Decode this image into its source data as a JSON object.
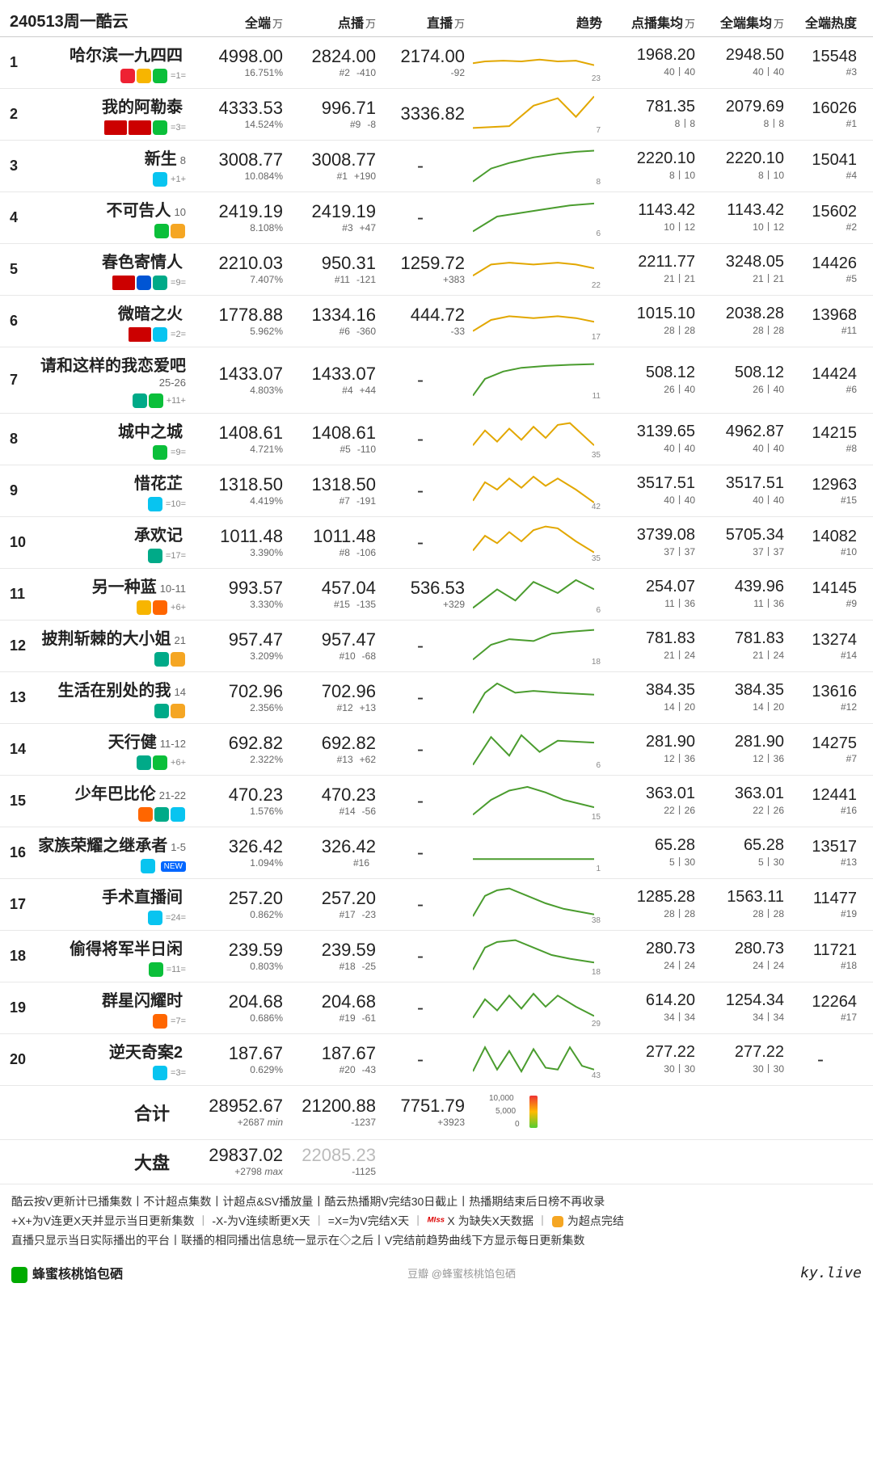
{
  "header": {
    "date": "240513周一酷云",
    "cols": {
      "all": "全端",
      "vod": "点播",
      "live": "直播",
      "trend": "趋势",
      "vodavg": "点播集均",
      "allavg": "全端集均",
      "heat": "全端热度",
      "unit": "万"
    }
  },
  "colors": {
    "line_hi": "#e2a700",
    "line_lo": "#4a9c2e",
    "grid": "#cccccc"
  },
  "rows": [
    {
      "rank": 1,
      "title": "哈尔滨一九四四",
      "ep": "",
      "plat": [
        "dragon",
        "hunan",
        "iqiyi"
      ],
      "ptxt": "=1=",
      "all": "4998.00",
      "all_sub": "16.751%",
      "vod": "2824.00",
      "vod_rk": "#2",
      "vod_d": "-410",
      "live": "2174.00",
      "live_d": "-92",
      "tn": "23",
      "trend": [
        [
          0,
          0.55
        ],
        [
          0.1,
          0.5
        ],
        [
          0.25,
          0.48
        ],
        [
          0.4,
          0.5
        ],
        [
          0.55,
          0.45
        ],
        [
          0.7,
          0.5
        ],
        [
          0.85,
          0.48
        ],
        [
          1,
          0.6
        ]
      ],
      "vodavg": "1968.20",
      "vodavg_s": "40丨40",
      "allavg": "2948.50",
      "allavg_s": "40丨40",
      "heat": "15548",
      "heat_r": "#3"
    },
    {
      "rank": 2,
      "title": "我的阿勒泰",
      "ep": "",
      "plat": [
        "cctv1",
        "cctv8",
        "iqiyi"
      ],
      "ptxt": "=3=",
      "all": "4333.53",
      "all_sub": "14.524%",
      "vod": "996.71",
      "vod_rk": "#9",
      "vod_d": "-8",
      "live": "3336.82",
      "live_d": "",
      "tn": "7",
      "trend": [
        [
          0,
          0.9
        ],
        [
          0.3,
          0.85
        ],
        [
          0.5,
          0.3
        ],
        [
          0.7,
          0.1
        ],
        [
          0.85,
          0.6
        ],
        [
          1,
          0.05
        ]
      ],
      "vodavg": "781.35",
      "vodavg_s": "8丨8",
      "allavg": "2079.69",
      "allavg_s": "8丨8",
      "heat": "16026",
      "heat_r": "#1"
    },
    {
      "rank": 3,
      "title": "新生",
      "ep": "8",
      "plat": [
        "youku"
      ],
      "ptxt": "+1+",
      "all": "3008.77",
      "all_sub": "10.084%",
      "vod": "3008.77",
      "vod_rk": "#1",
      "vod_d": "+190",
      "live": "-",
      "live_d": "",
      "tn": "8",
      "trend": [
        [
          0,
          0.95
        ],
        [
          0.15,
          0.6
        ],
        [
          0.3,
          0.45
        ],
        [
          0.5,
          0.3
        ],
        [
          0.7,
          0.2
        ],
        [
          0.85,
          0.15
        ],
        [
          1,
          0.12
        ]
      ],
      "vodavg": "2220.10",
      "vodavg_s": "8丨10",
      "allavg": "2220.10",
      "allavg_s": "8丨10",
      "heat": "15041",
      "heat_r": "#4"
    },
    {
      "rank": 4,
      "title": "不可告人",
      "ep": "10",
      "plat": [
        "iqiyi",
        "yy"
      ],
      "ptxt": "",
      "all": "2419.19",
      "all_sub": "8.108%",
      "vod": "2419.19",
      "vod_rk": "#3",
      "vod_d": "+47",
      "live": "-",
      "live_d": "",
      "tn": "6",
      "trend": [
        [
          0,
          0.9
        ],
        [
          0.2,
          0.5
        ],
        [
          0.4,
          0.4
        ],
        [
          0.6,
          0.3
        ],
        [
          0.8,
          0.2
        ],
        [
          1,
          0.15
        ]
      ],
      "vodavg": "1143.42",
      "vodavg_s": "10丨12",
      "allavg": "1143.42",
      "allavg_s": "10丨12",
      "heat": "15602",
      "heat_r": "#2"
    },
    {
      "rank": 5,
      "title": "春色寄情人",
      "ep": "",
      "plat": [
        "cctv8",
        "zj",
        "tx"
      ],
      "ptxt": "=9=",
      "all": "2210.03",
      "all_sub": "7.407%",
      "vod": "950.31",
      "vod_rk": "#11",
      "vod_d": "-121",
      "live": "1259.72",
      "live_d": "+383",
      "tn": "22",
      "trend": [
        [
          0,
          0.7
        ],
        [
          0.15,
          0.4
        ],
        [
          0.3,
          0.35
        ],
        [
          0.5,
          0.4
        ],
        [
          0.7,
          0.35
        ],
        [
          0.85,
          0.4
        ],
        [
          1,
          0.5
        ]
      ],
      "vodavg": "2211.77",
      "vodavg_s": "21丨21",
      "allavg": "3248.05",
      "allavg_s": "21丨21",
      "heat": "14426",
      "heat_r": "#5"
    },
    {
      "rank": 6,
      "title": "微暗之火",
      "ep": "",
      "plat": [
        "cctv8",
        "youku"
      ],
      "ptxt": "=2=",
      "all": "1778.88",
      "all_sub": "5.962%",
      "vod": "1334.16",
      "vod_rk": "#6",
      "vod_d": "-360",
      "live": "444.72",
      "live_d": "-33",
      "tn": "17",
      "trend": [
        [
          0,
          0.8
        ],
        [
          0.15,
          0.5
        ],
        [
          0.3,
          0.4
        ],
        [
          0.5,
          0.45
        ],
        [
          0.7,
          0.4
        ],
        [
          0.85,
          0.45
        ],
        [
          1,
          0.55
        ]
      ],
      "vodavg": "1015.10",
      "vodavg_s": "28丨28",
      "allavg": "2038.28",
      "allavg_s": "28丨28",
      "heat": "13968",
      "heat_r": "#11"
    },
    {
      "rank": 7,
      "title": "请和这样的我恋爱吧",
      "ep": "25-26",
      "plat": [
        "tx",
        "iqiyi"
      ],
      "ptxt": "+11+",
      "all": "1433.07",
      "all_sub": "4.803%",
      "vod": "1433.07",
      "vod_rk": "#4",
      "vod_d": "+44",
      "live": "-",
      "live_d": "",
      "tn": "11",
      "trend": [
        [
          0,
          0.95
        ],
        [
          0.1,
          0.5
        ],
        [
          0.25,
          0.3
        ],
        [
          0.4,
          0.2
        ],
        [
          0.6,
          0.15
        ],
        [
          0.8,
          0.12
        ],
        [
          1,
          0.1
        ]
      ],
      "vodavg": "508.12",
      "vodavg_s": "26丨40",
      "allavg": "508.12",
      "allavg_s": "26丨40",
      "heat": "14424",
      "heat_r": "#6"
    },
    {
      "rank": 8,
      "title": "城中之城",
      "ep": "",
      "plat": [
        "iqiyi"
      ],
      "ptxt": "=9=",
      "all": "1408.61",
      "all_sub": "4.721%",
      "vod": "1408.61",
      "vod_rk": "#5",
      "vod_d": "-110",
      "live": "-",
      "live_d": "",
      "tn": "35",
      "trend": [
        [
          0,
          0.7
        ],
        [
          0.1,
          0.3
        ],
        [
          0.2,
          0.6
        ],
        [
          0.3,
          0.25
        ],
        [
          0.4,
          0.55
        ],
        [
          0.5,
          0.2
        ],
        [
          0.6,
          0.5
        ],
        [
          0.7,
          0.15
        ],
        [
          0.8,
          0.1
        ],
        [
          0.9,
          0.4
        ],
        [
          1,
          0.7
        ]
      ],
      "vodavg": "3139.65",
      "vodavg_s": "40丨40",
      "allavg": "4962.87",
      "allavg_s": "40丨40",
      "heat": "14215",
      "heat_r": "#8"
    },
    {
      "rank": 9,
      "title": "惜花芷",
      "ep": "",
      "plat": [
        "youku"
      ],
      "ptxt": "=10=",
      "all": "1318.50",
      "all_sub": "4.419%",
      "vod": "1318.50",
      "vod_rk": "#7",
      "vod_d": "-191",
      "live": "-",
      "live_d": "",
      "tn": "42",
      "trend": [
        [
          0,
          0.8
        ],
        [
          0.1,
          0.3
        ],
        [
          0.2,
          0.5
        ],
        [
          0.3,
          0.2
        ],
        [
          0.4,
          0.45
        ],
        [
          0.5,
          0.15
        ],
        [
          0.6,
          0.4
        ],
        [
          0.7,
          0.2
        ],
        [
          0.85,
          0.5
        ],
        [
          1,
          0.85
        ]
      ],
      "vodavg": "3517.51",
      "vodavg_s": "40丨40",
      "allavg": "3517.51",
      "allavg_s": "40丨40",
      "heat": "12963",
      "heat_r": "#15"
    },
    {
      "rank": 10,
      "title": "承欢记",
      "ep": "",
      "plat": [
        "tx"
      ],
      "ptxt": "=17=",
      "all": "1011.48",
      "all_sub": "3.390%",
      "vod": "1011.48",
      "vod_rk": "#8",
      "vod_d": "-106",
      "live": "-",
      "live_d": "",
      "tn": "35",
      "trend": [
        [
          0,
          0.75
        ],
        [
          0.1,
          0.35
        ],
        [
          0.2,
          0.55
        ],
        [
          0.3,
          0.25
        ],
        [
          0.4,
          0.5
        ],
        [
          0.5,
          0.2
        ],
        [
          0.6,
          0.1
        ],
        [
          0.7,
          0.15
        ],
        [
          0.85,
          0.5
        ],
        [
          1,
          0.8
        ]
      ],
      "vodavg": "3739.08",
      "vodavg_s": "37丨37",
      "allavg": "5705.34",
      "allavg_s": "37丨37",
      "heat": "14082",
      "heat_r": "#10"
    },
    {
      "rank": 11,
      "title": "另一种蓝",
      "ep": "10-11",
      "plat": [
        "hunan",
        "mg"
      ],
      "ptxt": "+6+",
      "all": "993.57",
      "all_sub": "3.330%",
      "vod": "457.04",
      "vod_rk": "#15",
      "vod_d": "-135",
      "live": "536.53",
      "live_d": "+329",
      "tn": "6",
      "trend": [
        [
          0,
          0.9
        ],
        [
          0.2,
          0.4
        ],
        [
          0.35,
          0.7
        ],
        [
          0.5,
          0.2
        ],
        [
          0.7,
          0.5
        ],
        [
          0.85,
          0.15
        ],
        [
          1,
          0.4
        ]
      ],
      "vodavg": "254.07",
      "vodavg_s": "11丨36",
      "allavg": "439.96",
      "allavg_s": "11丨36",
      "heat": "14145",
      "heat_r": "#9"
    },
    {
      "rank": 12,
      "title": "披荆斩棘的大小姐",
      "ep": "21",
      "plat": [
        "tx",
        "yy"
      ],
      "ptxt": "",
      "all": "957.47",
      "all_sub": "3.209%",
      "vod": "957.47",
      "vod_rk": "#10",
      "vod_d": "-68",
      "live": "-",
      "live_d": "",
      "tn": "18",
      "trend": [
        [
          0,
          0.9
        ],
        [
          0.15,
          0.5
        ],
        [
          0.3,
          0.35
        ],
        [
          0.5,
          0.4
        ],
        [
          0.65,
          0.2
        ],
        [
          0.8,
          0.15
        ],
        [
          1,
          0.1
        ]
      ],
      "vodavg": "781.83",
      "vodavg_s": "21丨24",
      "allavg": "781.83",
      "allavg_s": "21丨24",
      "heat": "13274",
      "heat_r": "#14"
    },
    {
      "rank": 13,
      "title": "生活在别处的我",
      "ep": "14",
      "plat": [
        "tx",
        "yy"
      ],
      "ptxt": "",
      "all": "702.96",
      "all_sub": "2.356%",
      "vod": "702.96",
      "vod_rk": "#12",
      "vod_d": "+13",
      "live": "-",
      "live_d": "",
      "tn": "",
      "trend": [
        [
          0,
          0.95
        ],
        [
          0.1,
          0.4
        ],
        [
          0.2,
          0.15
        ],
        [
          0.35,
          0.4
        ],
        [
          0.5,
          0.35
        ],
        [
          0.7,
          0.4
        ],
        [
          1,
          0.45
        ]
      ],
      "vodavg": "384.35",
      "vodavg_s": "14丨20",
      "allavg": "384.35",
      "allavg_s": "14丨20",
      "heat": "13616",
      "heat_r": "#12"
    },
    {
      "rank": 14,
      "title": "天行健",
      "ep": "11-12",
      "plat": [
        "tx",
        "iqiyi"
      ],
      "ptxt": "+6+",
      "all": "692.82",
      "all_sub": "2.322%",
      "vod": "692.82",
      "vod_rk": "#13",
      "vod_d": "+62",
      "live": "-",
      "live_d": "",
      "tn": "6",
      "trend": [
        [
          0,
          0.95
        ],
        [
          0.15,
          0.2
        ],
        [
          0.3,
          0.7
        ],
        [
          0.4,
          0.15
        ],
        [
          0.55,
          0.6
        ],
        [
          0.7,
          0.3
        ],
        [
          1,
          0.35
        ]
      ],
      "vodavg": "281.90",
      "vodavg_s": "12丨36",
      "allavg": "281.90",
      "allavg_s": "12丨36",
      "heat": "14275",
      "heat_r": "#7"
    },
    {
      "rank": 15,
      "title": "少年巴比伦",
      "ep": "21-22",
      "plat": [
        "mg",
        "tx",
        "youku"
      ],
      "ptxt": "",
      "all": "470.23",
      "all_sub": "1.576%",
      "vod": "470.23",
      "vod_rk": "#14",
      "vod_d": "-56",
      "live": "-",
      "live_d": "",
      "tn": "15",
      "trend": [
        [
          0,
          0.9
        ],
        [
          0.15,
          0.5
        ],
        [
          0.3,
          0.25
        ],
        [
          0.45,
          0.15
        ],
        [
          0.6,
          0.3
        ],
        [
          0.75,
          0.5
        ],
        [
          1,
          0.7
        ]
      ],
      "vodavg": "363.01",
      "vodavg_s": "22丨26",
      "allavg": "363.01",
      "allavg_s": "22丨26",
      "heat": "12441",
      "heat_r": "#16"
    },
    {
      "rank": 16,
      "title": "家族荣耀之继承者",
      "ep": "1-5",
      "plat": [
        "youku"
      ],
      "ptxt": "NEW",
      "new": true,
      "all": "326.42",
      "all_sub": "1.094%",
      "vod": "326.42",
      "vod_rk": "#16",
      "vod_d": "",
      "live": "-",
      "live_d": "",
      "tn": "1",
      "trend": [
        [
          0,
          0.7
        ],
        [
          1,
          0.7
        ]
      ],
      "vodavg": "65.28",
      "vodavg_s": "5丨30",
      "allavg": "65.28",
      "allavg_s": "5丨30",
      "heat": "13517",
      "heat_r": "#13"
    },
    {
      "rank": 17,
      "title": "手术直播间",
      "ep": "",
      "plat": [
        "youku"
      ],
      "ptxt": "=24=",
      "all": "257.20",
      "all_sub": "0.862%",
      "vod": "257.20",
      "vod_rk": "#17",
      "vod_d": "-23",
      "live": "-",
      "live_d": "",
      "tn": "38",
      "trend": [
        [
          0,
          0.85
        ],
        [
          0.1,
          0.3
        ],
        [
          0.2,
          0.15
        ],
        [
          0.3,
          0.1
        ],
        [
          0.45,
          0.3
        ],
        [
          0.6,
          0.5
        ],
        [
          0.75,
          0.65
        ],
        [
          1,
          0.8
        ]
      ],
      "vodavg": "1285.28",
      "vodavg_s": "28丨28",
      "allavg": "1563.11",
      "allavg_s": "28丨28",
      "heat": "11477",
      "heat_r": "#19"
    },
    {
      "rank": 18,
      "title": "偷得将军半日闲",
      "ep": "",
      "plat": [
        "iqiyi"
      ],
      "ptxt": "=11=",
      "all": "239.59",
      "all_sub": "0.803%",
      "vod": "239.59",
      "vod_rk": "#18",
      "vod_d": "-25",
      "live": "-",
      "live_d": "",
      "tn": "18",
      "trend": [
        [
          0,
          0.9
        ],
        [
          0.1,
          0.3
        ],
        [
          0.2,
          0.15
        ],
        [
          0.35,
          0.1
        ],
        [
          0.5,
          0.3
        ],
        [
          0.65,
          0.5
        ],
        [
          0.8,
          0.6
        ],
        [
          1,
          0.7
        ]
      ],
      "vodavg": "280.73",
      "vodavg_s": "24丨24",
      "allavg": "280.73",
      "allavg_s": "24丨24",
      "heat": "11721",
      "heat_r": "#18"
    },
    {
      "rank": 19,
      "title": "群星闪耀时",
      "ep": "",
      "plat": [
        "mg"
      ],
      "ptxt": "=7=",
      "all": "204.68",
      "all_sub": "0.686%",
      "vod": "204.68",
      "vod_rk": "#19",
      "vod_d": "-61",
      "live": "-",
      "live_d": "",
      "tn": "29",
      "trend": [
        [
          0,
          0.8
        ],
        [
          0.1,
          0.3
        ],
        [
          0.2,
          0.6
        ],
        [
          0.3,
          0.2
        ],
        [
          0.4,
          0.55
        ],
        [
          0.5,
          0.15
        ],
        [
          0.6,
          0.5
        ],
        [
          0.7,
          0.2
        ],
        [
          0.85,
          0.5
        ],
        [
          1,
          0.75
        ]
      ],
      "vodavg": "614.20",
      "vodavg_s": "34丨34",
      "allavg": "1254.34",
      "allavg_s": "34丨34",
      "heat": "12264",
      "heat_r": "#17"
    },
    {
      "rank": 20,
      "title": "逆天奇案2",
      "ep": "",
      "plat": [
        "youku"
      ],
      "ptxt": "=3=",
      "all": "187.67",
      "all_sub": "0.629%",
      "vod": "187.67",
      "vod_rk": "#20",
      "vod_d": "-43",
      "live": "-",
      "live_d": "",
      "tn": "43",
      "trend": [
        [
          0,
          0.85
        ],
        [
          0.1,
          0.2
        ],
        [
          0.2,
          0.8
        ],
        [
          0.3,
          0.3
        ],
        [
          0.4,
          0.85
        ],
        [
          0.5,
          0.25
        ],
        [
          0.6,
          0.75
        ],
        [
          0.7,
          0.8
        ],
        [
          0.8,
          0.2
        ],
        [
          0.9,
          0.7
        ],
        [
          1,
          0.8
        ]
      ],
      "vodavg": "277.22",
      "vodavg_s": "30丨30",
      "allavg": "277.22",
      "allavg_s": "30丨30",
      "heat": "-",
      "heat_r": ""
    }
  ],
  "totals": {
    "heji": {
      "label": "合计",
      "all": "28952.67",
      "all_d": "+2687",
      "all_t": "min",
      "vod": "21200.88",
      "vod_d": "-1237",
      "live": "7751.79",
      "live_d": "+3923"
    },
    "dapan": {
      "label": "大盘",
      "all": "29837.02",
      "all_d": "+2798",
      "all_t": "max",
      "vod": "22085.23",
      "vod_d": "-1125"
    },
    "legend": {
      "l10": "10,000",
      "l5": "5,000",
      "l0": "0"
    }
  },
  "footer": {
    "lines": [
      "酷云按V更新计已播集数丨不计超点集数丨计超点&SV播放量丨酷云热播期V完结30日截止丨热播期结束后日榜不再收录",
      "+X+为V连更X天并显示当日更新集数丨-X-为V连续断更X天丨=X=为V完结X天丨ᴹᴵˢˢ X 为缺失X天数据丨▶ 为超点完结",
      "直播只显示当日实际播出的平台丨联播的相同播出信息统一显示在◇之后丨V完结前趋势曲线下方显示每日更新集数"
    ],
    "author": "蜂蜜核桃馅包硒",
    "center": "豆瓣 @蜂蜜核桃馅包硒",
    "site": "ky.live"
  }
}
